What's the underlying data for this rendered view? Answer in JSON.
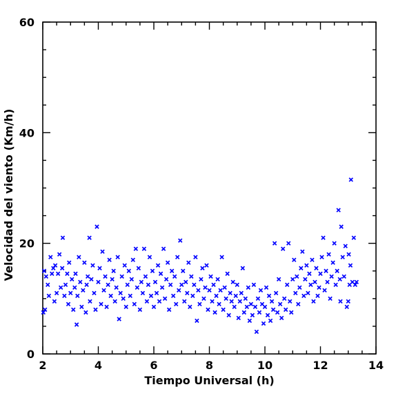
{
  "chart_data": {
    "type": "scatter",
    "title": "",
    "xlabel": "Tiempo Universal (h)",
    "ylabel": "Velocidad del viento (Km/h)",
    "xlim": [
      2,
      14
    ],
    "ylim": [
      0,
      60
    ],
    "x_ticks": [
      "2",
      "4",
      "6",
      "8",
      "10",
      "12",
      "14"
    ],
    "y_ticks": [
      "0",
      "20",
      "40",
      "60"
    ],
    "marker": "x",
    "marker_color": "#0000ff",
    "grid": false,
    "series": [
      {
        "points": [
          [
            2.02,
            7.5
          ],
          [
            2.05,
            15.0
          ],
          [
            2.08,
            8.0
          ],
          [
            2.12,
            14.0
          ],
          [
            2.18,
            12.5
          ],
          [
            2.22,
            10.5
          ],
          [
            2.28,
            17.5
          ],
          [
            2.33,
            14.5
          ],
          [
            2.38,
            15.5
          ],
          [
            2.42,
            9.5
          ],
          [
            2.45,
            16.0
          ],
          [
            2.5,
            11.0
          ],
          [
            2.55,
            14.5
          ],
          [
            2.6,
            18.0
          ],
          [
            2.65,
            12.0
          ],
          [
            2.7,
            15.5
          ],
          [
            2.72,
            21.0
          ],
          [
            2.78,
            10.5
          ],
          [
            2.82,
            12.5
          ],
          [
            2.88,
            14.5
          ],
          [
            2.92,
            9.0
          ],
          [
            2.95,
            16.5
          ],
          [
            3.0,
            11.0
          ],
          [
            3.05,
            13.5
          ],
          [
            3.1,
            8.0
          ],
          [
            3.15,
            12.0
          ],
          [
            3.18,
            14.5
          ],
          [
            3.22,
            5.3
          ],
          [
            3.25,
            10.5
          ],
          [
            3.3,
            17.5
          ],
          [
            3.35,
            13.0
          ],
          [
            3.4,
            8.5
          ],
          [
            3.45,
            11.5
          ],
          [
            3.5,
            16.5
          ],
          [
            3.55,
            7.5
          ],
          [
            3.58,
            12.5
          ],
          [
            3.62,
            14.0
          ],
          [
            3.68,
            21.0
          ],
          [
            3.7,
            9.5
          ],
          [
            3.75,
            13.5
          ],
          [
            3.8,
            16.0
          ],
          [
            3.85,
            11.0
          ],
          [
            3.9,
            8.0
          ],
          [
            3.95,
            23.0
          ],
          [
            4.0,
            13.0
          ],
          [
            4.05,
            15.5
          ],
          [
            4.1,
            9.0
          ],
          [
            4.15,
            18.5
          ],
          [
            4.2,
            11.5
          ],
          [
            4.25,
            14.0
          ],
          [
            4.3,
            8.5
          ],
          [
            4.35,
            12.5
          ],
          [
            4.4,
            17.0
          ],
          [
            4.45,
            10.5
          ],
          [
            4.5,
            13.5
          ],
          [
            4.55,
            15.0
          ],
          [
            4.6,
            9.5
          ],
          [
            4.65,
            12.0
          ],
          [
            4.7,
            17.5
          ],
          [
            4.75,
            6.3
          ],
          [
            4.8,
            11.0
          ],
          [
            4.85,
            14.0
          ],
          [
            4.9,
            10.0
          ],
          [
            4.95,
            16.0
          ],
          [
            5.0,
            8.5
          ],
          [
            5.05,
            12.5
          ],
          [
            5.1,
            15.0
          ],
          [
            5.15,
            10.5
          ],
          [
            5.2,
            13.5
          ],
          [
            5.25,
            17.0
          ],
          [
            5.3,
            9.0
          ],
          [
            5.35,
            19.0
          ],
          [
            5.4,
            12.0
          ],
          [
            5.45,
            15.5
          ],
          [
            5.5,
            8.0
          ],
          [
            5.55,
            13.0
          ],
          [
            5.6,
            11.0
          ],
          [
            5.65,
            19.0
          ],
          [
            5.7,
            14.0
          ],
          [
            5.75,
            9.5
          ],
          [
            5.8,
            12.5
          ],
          [
            5.85,
            17.5
          ],
          [
            5.9,
            10.5
          ],
          [
            5.95,
            15.0
          ],
          [
            6.0,
            8.5
          ],
          [
            6.05,
            13.0
          ],
          [
            6.1,
            11.0
          ],
          [
            6.15,
            16.0
          ],
          [
            6.2,
            9.5
          ],
          [
            6.25,
            14.5
          ],
          [
            6.3,
            12.0
          ],
          [
            6.35,
            19.0
          ],
          [
            6.4,
            10.0
          ],
          [
            6.45,
            13.5
          ],
          [
            6.5,
            16.5
          ],
          [
            6.55,
            8.0
          ],
          [
            6.6,
            12.5
          ],
          [
            6.65,
            15.0
          ],
          [
            6.7,
            10.5
          ],
          [
            6.75,
            14.0
          ],
          [
            6.8,
            9.0
          ],
          [
            6.85,
            17.5
          ],
          [
            6.9,
            11.5
          ],
          [
            6.95,
            20.5
          ],
          [
            7.0,
            12.5
          ],
          [
            7.05,
            15.0
          ],
          [
            7.1,
            9.5
          ],
          [
            7.15,
            13.0
          ],
          [
            7.2,
            11.0
          ],
          [
            7.25,
            16.5
          ],
          [
            7.3,
            8.5
          ],
          [
            7.35,
            14.0
          ],
          [
            7.4,
            10.5
          ],
          [
            7.45,
            12.5
          ],
          [
            7.5,
            17.5
          ],
          [
            7.55,
            6.0
          ],
          [
            7.6,
            11.5
          ],
          [
            7.65,
            9.0
          ],
          [
            7.7,
            13.5
          ],
          [
            7.75,
            15.5
          ],
          [
            7.8,
            10.0
          ],
          [
            7.85,
            12.0
          ],
          [
            7.9,
            16.0
          ],
          [
            7.95,
            8.0
          ],
          [
            8.0,
            11.5
          ],
          [
            8.05,
            14.0
          ],
          [
            8.1,
            9.5
          ],
          [
            8.15,
            12.5
          ],
          [
            8.2,
            7.5
          ],
          [
            8.25,
            10.5
          ],
          [
            8.3,
            13.5
          ],
          [
            8.35,
            9.0
          ],
          [
            8.4,
            11.5
          ],
          [
            8.45,
            17.5
          ],
          [
            8.5,
            8.0
          ],
          [
            8.55,
            12.0
          ],
          [
            8.6,
            10.0
          ],
          [
            8.65,
            14.5
          ],
          [
            8.7,
            7.0
          ],
          [
            8.75,
            11.0
          ],
          [
            8.8,
            9.5
          ],
          [
            8.85,
            13.0
          ],
          [
            8.9,
            8.5
          ],
          [
            8.95,
            10.5
          ],
          [
            9.0,
            12.5
          ],
          [
            9.05,
            6.5
          ],
          [
            9.1,
            9.5
          ],
          [
            9.15,
            11.0
          ],
          [
            9.2,
            15.5
          ],
          [
            9.25,
            7.5
          ],
          [
            9.3,
            10.0
          ],
          [
            9.35,
            8.5
          ],
          [
            9.4,
            12.0
          ],
          [
            9.45,
            6.0
          ],
          [
            9.5,
            9.0
          ],
          [
            9.55,
            7.0
          ],
          [
            9.6,
            12.5
          ],
          [
            9.65,
            8.5
          ],
          [
            9.7,
            4.0
          ],
          [
            9.75,
            10.0
          ],
          [
            9.8,
            7.5
          ],
          [
            9.85,
            11.5
          ],
          [
            9.9,
            9.0
          ],
          [
            9.95,
            5.5
          ],
          [
            10.0,
            8.5
          ],
          [
            10.05,
            12.0
          ],
          [
            10.1,
            7.0
          ],
          [
            10.15,
            10.5
          ],
          [
            10.2,
            6.0
          ],
          [
            10.25,
            9.5
          ],
          [
            10.3,
            8.0
          ],
          [
            10.35,
            20.0
          ],
          [
            10.4,
            11.0
          ],
          [
            10.45,
            7.5
          ],
          [
            10.5,
            13.5
          ],
          [
            10.55,
            9.0
          ],
          [
            10.6,
            6.5
          ],
          [
            10.65,
            19.0
          ],
          [
            10.7,
            10.0
          ],
          [
            10.75,
            8.0
          ],
          [
            10.8,
            12.5
          ],
          [
            10.85,
            20.0
          ],
          [
            10.9,
            9.5
          ],
          [
            10.95,
            7.5
          ],
          [
            11.0,
            13.5
          ],
          [
            11.05,
            17.0
          ],
          [
            11.1,
            11.0
          ],
          [
            11.15,
            14.0
          ],
          [
            11.2,
            9.0
          ],
          [
            11.25,
            12.0
          ],
          [
            11.3,
            15.5
          ],
          [
            11.35,
            18.5
          ],
          [
            11.4,
            10.5
          ],
          [
            11.45,
            13.5
          ],
          [
            11.5,
            16.0
          ],
          [
            11.55,
            11.0
          ],
          [
            11.6,
            14.5
          ],
          [
            11.65,
            12.5
          ],
          [
            11.7,
            17.0
          ],
          [
            11.75,
            9.5
          ],
          [
            11.8,
            13.0
          ],
          [
            11.85,
            15.5
          ],
          [
            11.9,
            10.5
          ],
          [
            11.95,
            12.0
          ],
          [
            12.0,
            14.5
          ],
          [
            12.05,
            17.5
          ],
          [
            12.1,
            21.0
          ],
          [
            12.15,
            11.5
          ],
          [
            12.2,
            15.0
          ],
          [
            12.25,
            13.0
          ],
          [
            12.3,
            18.0
          ],
          [
            12.35,
            10.0
          ],
          [
            12.4,
            14.0
          ],
          [
            12.45,
            16.5
          ],
          [
            12.5,
            20.0
          ],
          [
            12.55,
            12.5
          ],
          [
            12.6,
            15.0
          ],
          [
            12.65,
            26.0
          ],
          [
            12.7,
            13.5
          ],
          [
            12.72,
            9.5
          ],
          [
            12.75,
            23.0
          ],
          [
            12.8,
            17.5
          ],
          [
            12.85,
            14.0
          ],
          [
            12.9,
            19.5
          ],
          [
            12.95,
            8.5
          ],
          [
            13.0,
            9.5
          ],
          [
            13.02,
            18.0
          ],
          [
            13.05,
            12.5
          ],
          [
            13.08,
            16.0
          ],
          [
            13.1,
            31.5
          ],
          [
            13.15,
            13.0
          ],
          [
            13.2,
            21.0
          ],
          [
            13.25,
            12.5
          ],
          [
            13.3,
            13.0
          ]
        ]
      }
    ]
  }
}
